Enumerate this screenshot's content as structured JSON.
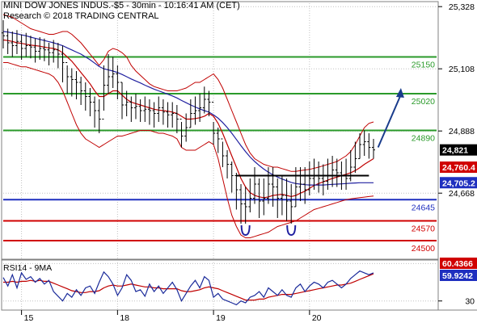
{
  "header": {
    "line1": "MINI DOW JONES INDUS.-$5 - 30min - 10:16:41 AM (CET)",
    "line2": "Research © 2018 TRADING CENTRAL"
  },
  "colors": {
    "background": "#ffffff",
    "grid": "#c0c0c0",
    "candles": "#000000",
    "bollinger": "#c00000",
    "ma_short": "#c00000",
    "ma_long": "#2020a0",
    "green_level": "#2a9a2a",
    "blue_level": "#1f2fbf",
    "red_level": "#d00000",
    "arrow": "#1a3c8c",
    "rsi": "#1a2a9a",
    "rsi_ma": "#c00000"
  },
  "chart_data": [
    {
      "type": "candlestick",
      "title": "MINI DOW JONES INDUS.-$5 - 30min",
      "ylim": [
        24440,
        25340
      ],
      "y_ticks": [
        "25,328",
        "25,108",
        "24,888",
        "24,668"
      ],
      "x_ticks": [
        {
          "label": "15",
          "bar": 4
        },
        {
          "label": "18",
          "bar": 25
        },
        {
          "label": "19",
          "bar": 46
        },
        {
          "label": "20",
          "bar": 67
        }
      ],
      "levels": [
        {
          "value": 25150,
          "label": "25150",
          "color": "green"
        },
        {
          "value": 25020,
          "label": "25020",
          "color": "green"
        },
        {
          "value": 24890,
          "label": "24890",
          "color": "green"
        },
        {
          "value": 24645,
          "label": "24645",
          "color": "blue"
        },
        {
          "value": 24570,
          "label": "24570",
          "color": "red"
        },
        {
          "value": 24500,
          "label": "24500",
          "color": "red"
        }
      ],
      "neckline": {
        "value": 24730,
        "from_bar": 51,
        "to_bar": 80
      },
      "double_bottom_marks": [
        {
          "bar": 53,
          "value": 24540
        },
        {
          "bar": 63,
          "value": 24540
        }
      ],
      "arrow": {
        "from_bar": 82,
        "from_value": 24830,
        "to_bar": 87,
        "to_value": 25040
      },
      "price_tags": [
        {
          "label": "24,821",
          "value": 24821,
          "bg": "#000000",
          "fg": "#ffffff"
        },
        {
          "label": "24,760.4",
          "value": 24760,
          "bg": "#d00000",
          "fg": "#ffffff"
        },
        {
          "label": "24,705.2",
          "value": 24705,
          "bg": "#1f2fbf",
          "fg": "#ffffff"
        }
      ],
      "close": [
        25225,
        25200,
        25190,
        25205,
        25180,
        25190,
        25185,
        25170,
        25180,
        25175,
        25165,
        25175,
        25160,
        25130,
        25080,
        25070,
        25060,
        25030,
        25010,
        24990,
        24960,
        24930,
        25050,
        25080,
        25090,
        25060,
        24980,
        24990,
        24970,
        24975,
        24960,
        24965,
        24960,
        24950,
        24970,
        24955,
        24945,
        24950,
        24930,
        24870,
        24900,
        24950,
        24960,
        24970,
        25000,
        24990,
        24880,
        24860,
        24800,
        24770,
        24730,
        24680,
        24630,
        24620,
        24650,
        24700,
        24640,
        24650,
        24700,
        24690,
        24650,
        24660,
        24640,
        24620,
        24690,
        24700,
        24680,
        24720,
        24730,
        24720,
        24710,
        24730,
        24750,
        24740,
        24730,
        24720,
        24760,
        24790,
        24840,
        24850,
        24830,
        24821
      ],
      "high": [
        25280,
        25250,
        25240,
        25245,
        25230,
        25235,
        25225,
        25215,
        25220,
        25215,
        25200,
        25210,
        25200,
        25190,
        25120,
        25110,
        25100,
        25080,
        25060,
        25040,
        25010,
        25000,
        25120,
        25160,
        25150,
        25120,
        25060,
        25030,
        25010,
        25020,
        25000,
        25010,
        25000,
        24990,
        25010,
        25000,
        24990,
        24990,
        24980,
        24920,
        24950,
        25000,
        25010,
        25020,
        25045,
        25030,
        24920,
        24900,
        24850,
        24820,
        24780,
        24740,
        24700,
        24690,
        24720,
        24760,
        24720,
        24720,
        24760,
        24760,
        24720,
        24730,
        24720,
        24700,
        24760,
        24760,
        24760,
        24780,
        24790,
        24780,
        24770,
        24790,
        24800,
        24790,
        24780,
        24790,
        24820,
        24850,
        24880,
        24890,
        24880,
        24860
      ],
      "low": [
        25180,
        25160,
        25150,
        25160,
        25140,
        25150,
        25145,
        25130,
        25140,
        25135,
        25120,
        25130,
        25110,
        25060,
        25020,
        25010,
        25000,
        24980,
        24960,
        24940,
        24900,
        24880,
        24960,
        25020,
        25040,
        25000,
        24930,
        24940,
        24920,
        24930,
        24920,
        24920,
        24910,
        24900,
        24920,
        24910,
        24900,
        24900,
        24880,
        24830,
        24850,
        24900,
        24910,
        24920,
        24950,
        24940,
        24840,
        24810,
        24760,
        24720,
        24670,
        24610,
        24560,
        24560,
        24600,
        24630,
        24580,
        24590,
        24630,
        24620,
        24580,
        24590,
        24570,
        24560,
        24620,
        24640,
        24630,
        24660,
        24680,
        24670,
        24660,
        24680,
        24690,
        24690,
        24680,
        24680,
        24710,
        24740,
        24790,
        24800,
        24790,
        24790
      ],
      "bb_upper": [
        25300,
        25295,
        25290,
        25280,
        25270,
        25260,
        25250,
        25245,
        25240,
        25235,
        25230,
        25230,
        25235,
        25240,
        25240,
        25230,
        25215,
        25200,
        25180,
        25160,
        25140,
        25120,
        25140,
        25170,
        25180,
        25175,
        25165,
        25150,
        25120,
        25100,
        25085,
        25070,
        25055,
        25045,
        25040,
        25035,
        25030,
        25030,
        25030,
        25035,
        25040,
        25050,
        25060,
        25060,
        25070,
        25080,
        25090,
        25070,
        25040,
        25000,
        24960,
        24920,
        24880,
        24840,
        24810,
        24790,
        24780,
        24770,
        24765,
        24760,
        24760,
        24755,
        24750,
        24745,
        24745,
        24748,
        24750,
        24752,
        24756,
        24760,
        24765,
        24770,
        24775,
        24780,
        24790,
        24800,
        24815,
        24840,
        24870,
        24900,
        24915,
        24920
      ],
      "bb_lower": [
        25130,
        25130,
        25125,
        25120,
        25115,
        25115,
        25110,
        25105,
        25100,
        25095,
        25090,
        25080,
        25060,
        25030,
        24990,
        24950,
        24910,
        24880,
        24860,
        24850,
        24840,
        24830,
        24840,
        24850,
        24860,
        24870,
        24870,
        24875,
        24880,
        24885,
        24890,
        24890,
        24890,
        24885,
        24880,
        24880,
        24875,
        24870,
        24860,
        24830,
        24820,
        24820,
        24820,
        24830,
        24840,
        24850,
        24840,
        24790,
        24720,
        24650,
        24590,
        24550,
        24520,
        24510,
        24510,
        24515,
        24520,
        24525,
        24530,
        24540,
        24550,
        24555,
        24560,
        24565,
        24570,
        24580,
        24590,
        24600,
        24610,
        24615,
        24620,
        24625,
        24630,
        24635,
        24640,
        24645,
        24648,
        24650,
        24652,
        24654,
        24656,
        24658
      ],
      "ma_short": [
        25210,
        25208,
        25205,
        25200,
        25198,
        25195,
        25192,
        25190,
        25188,
        25185,
        25182,
        25180,
        25175,
        25165,
        25150,
        25135,
        25115,
        25095,
        25075,
        25055,
        25030,
        25010,
        25010,
        25020,
        25030,
        25030,
        25015,
        25000,
        24990,
        24985,
        24980,
        24975,
        24970,
        24965,
        24962,
        24960,
        24958,
        24955,
        24950,
        24940,
        24930,
        24930,
        24932,
        24935,
        24940,
        24950,
        24940,
        24915,
        24880,
        24840,
        24800,
        24760,
        24720,
        24690,
        24670,
        24660,
        24655,
        24652,
        24655,
        24660,
        24662,
        24664,
        24660,
        24656,
        24660,
        24668,
        24675,
        24685,
        24695,
        24702,
        24708,
        24714,
        24720,
        24725,
        24730,
        24735,
        24740,
        24748,
        24758,
        24770,
        24780,
        24790
      ],
      "ma_long": [
        25240,
        25238,
        25235,
        25232,
        25228,
        25225,
        25220,
        25216,
        25212,
        25208,
        25204,
        25200,
        25195,
        25190,
        25182,
        25175,
        25167,
        25160,
        25150,
        25140,
        25128,
        25116,
        25108,
        25104,
        25100,
        25095,
        25088,
        25080,
        25072,
        25065,
        25058,
        25050,
        25043,
        25036,
        25030,
        25024,
        25018,
        25012,
        25005,
        24996,
        24988,
        24980,
        24973,
        24966,
        24960,
        24955,
        24945,
        24933,
        24918,
        24900,
        24880,
        24858,
        24836,
        24815,
        24796,
        24780,
        24766,
        24753,
        24742,
        24733,
        24725,
        24718,
        24712,
        24706,
        24702,
        24700,
        24698,
        24697,
        24697,
        24697,
        24697,
        24698,
        24699,
        24700,
        24701,
        24702,
        24703,
        24704,
        24705,
        24705,
        24705,
        24705
      ]
    },
    {
      "type": "line",
      "title": "RSI14 - 9MA",
      "ylim": [
        22,
        72
      ],
      "y_ticks": [
        "30"
      ],
      "tags": [
        {
          "label": "60.4366",
          "value": 60.4,
          "bg": "#d00000",
          "fg": "#ffffff"
        },
        {
          "label": "59.9242",
          "value": 59.9,
          "bg": "#1f2fbf",
          "fg": "#ffffff"
        }
      ],
      "series": [
        {
          "values": [
            55,
            46,
            58,
            44,
            60,
            53,
            56,
            50,
            54,
            48,
            52,
            40,
            35,
            30,
            38,
            34,
            42,
            36,
            44,
            46,
            38,
            50,
            61,
            56,
            48,
            36,
            44,
            58,
            52,
            40,
            42,
            35,
            48,
            40,
            46,
            38,
            44,
            50,
            42,
            30,
            38,
            46,
            52,
            44,
            56,
            52,
            34,
            38,
            32,
            30,
            28,
            26,
            30,
            28,
            34,
            36,
            40,
            34,
            44,
            40,
            36,
            42,
            36,
            34,
            44,
            48,
            40,
            46,
            50,
            48,
            44,
            50,
            52,
            48,
            44,
            48,
            54,
            58,
            62,
            60,
            58,
            60
          ]
        },
        {
          "values": [
            50,
            50,
            51,
            50,
            51,
            51,
            52,
            51,
            52,
            51,
            51,
            49,
            47,
            45,
            43,
            41,
            40,
            39,
            39,
            40,
            40,
            41,
            44,
            46,
            47,
            46,
            46,
            47,
            48,
            47,
            46,
            45,
            45,
            44,
            44,
            43,
            43,
            43,
            43,
            41,
            40,
            40,
            41,
            42,
            44,
            45,
            44,
            43,
            41,
            39,
            37,
            35,
            33,
            31,
            31,
            31,
            32,
            32,
            34,
            35,
            36,
            37,
            37,
            37,
            38,
            39,
            40,
            41,
            42,
            43,
            44,
            45,
            46,
            47,
            47,
            48,
            49,
            51,
            53,
            55,
            57,
            59
          ]
        }
      ]
    }
  ]
}
